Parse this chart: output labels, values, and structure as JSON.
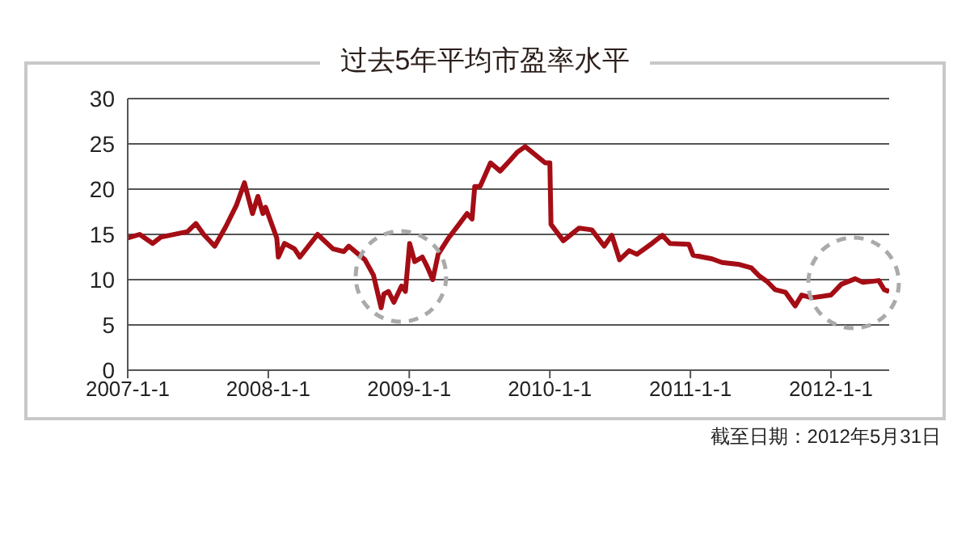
{
  "chart_data": {
    "type": "line",
    "title": "过去5年平均市盈率水平",
    "annotations": [
      "截至日期：2012年5月31日"
    ],
    "x": [
      "2007-01-01",
      "2007-02-01",
      "2007-03-07",
      "2007-03-28",
      "2007-06-05",
      "2007-06-27",
      "2007-07-17",
      "2007-08-15",
      "2007-09-12",
      "2007-10-10",
      "2007-10-31",
      "2007-11-21",
      "2007-12-05",
      "2007-12-18",
      "2007-12-25",
      "2008-01-23",
      "2008-01-27",
      "2008-02-12",
      "2008-03-09",
      "2008-03-23",
      "2008-05-08",
      "2008-06-17",
      "2008-07-15",
      "2008-07-28",
      "2008-09-08",
      "2008-09-30",
      "2008-10-20",
      "2008-10-27",
      "2008-11-08",
      "2008-11-22",
      "2008-12-12",
      "2008-12-22",
      "2009-01-02",
      "2009-01-15",
      "2009-02-04",
      "2009-02-17",
      "2009-03-03",
      "2009-03-17",
      "2009-04-13",
      "2009-05-10",
      "2009-05-31",
      "2009-06-13",
      "2009-06-20",
      "2009-07-04",
      "2009-07-31",
      "2009-08-25",
      "2009-09-20",
      "2009-10-09",
      "2009-10-29",
      "2009-12-20",
      "2010-01-01",
      "2010-01-04",
      "2010-02-05",
      "2010-03-18",
      "2010-04-20",
      "2010-05-22",
      "2010-06-11",
      "2010-07-01",
      "2010-07-26",
      "2010-08-15",
      "2010-09-23",
      "2010-10-20",
      "2010-11-09",
      "2010-12-28",
      "2011-01-08",
      "2011-02-26",
      "2011-03-24",
      "2011-05-05",
      "2011-06-08",
      "2011-06-29",
      "2011-07-19",
      "2011-08-09",
      "2011-09-05",
      "2011-09-30",
      "2011-10-17",
      "2011-11-12",
      "2012-01-01",
      "2012-01-28",
      "2012-03-04",
      "2012-03-24",
      "2012-05-04",
      "2012-05-18",
      "2012-05-31"
    ],
    "series": [
      {
        "color": "#a50d15",
        "values": [
          14.6,
          15,
          14,
          14.7,
          15.3,
          16.2,
          15,
          13.7,
          15.8,
          18.2,
          20.7,
          17.3,
          19.2,
          17.3,
          18,
          14.6,
          12.5,
          14,
          13.4,
          12.5,
          15,
          13.4,
          13.1,
          13.7,
          12.2,
          10.5,
          6.9,
          8.4,
          8.7,
          7.5,
          9.3,
          8.7,
          14,
          12,
          12.5,
          11.4,
          10,
          12.8,
          14.6,
          16.1,
          17.3,
          16.7,
          20.3,
          20.3,
          22.9,
          22,
          23.2,
          24.1,
          24.7,
          22.9,
          22.9,
          16.1,
          14.3,
          15.7,
          15.5,
          13.7,
          14.9,
          12.2,
          13.2,
          12.8,
          14,
          14.9,
          14,
          13.9,
          12.7,
          12.3,
          11.9,
          11.7,
          11.3,
          10.4,
          9.8,
          8.9,
          8.6,
          7.1,
          8.3,
          8,
          8.3,
          9.5,
          10.1,
          9.7,
          9.9,
          8.9,
          8.7
        ]
      }
    ],
    "xlim": [
      "2007-01-01",
      "2012-05-31"
    ],
    "xticks": [
      {
        "value": "2007-01-01",
        "label": "2007-1-1"
      },
      {
        "value": "2008-01-01",
        "label": "2008-1-1"
      },
      {
        "value": "2009-01-01",
        "label": "2009-1-1"
      },
      {
        "value": "2010-01-01",
        "label": "2010-1-1"
      },
      {
        "value": "2011-01-01",
        "label": "2011-1-1"
      },
      {
        "value": "2012-01-01",
        "label": "2012-1-1"
      }
    ],
    "ylim": [
      0,
      30
    ],
    "yticks": [
      0,
      5,
      10,
      15,
      20,
      25,
      30
    ],
    "grid": "y",
    "legend": false,
    "marker": "none",
    "line_style": "solid"
  }
}
